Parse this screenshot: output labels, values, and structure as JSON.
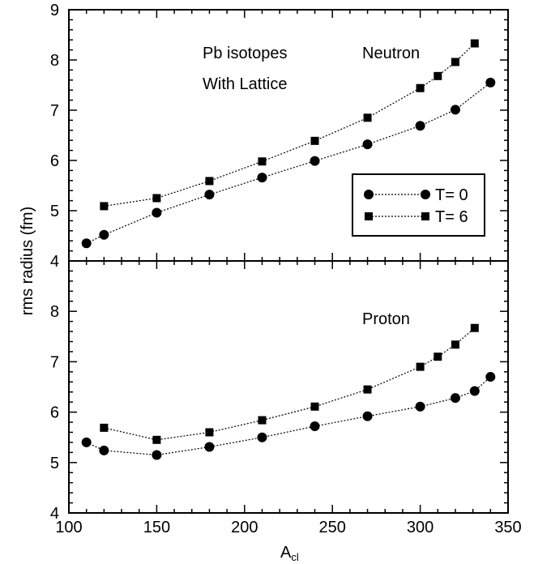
{
  "chart_data": {
    "type": "line",
    "ylabel": "rms radius (fm)",
    "xlabel_main": "A",
    "xlabel_sub": "cl",
    "xlim": [
      100,
      350
    ],
    "xticks": [
      "100",
      "150",
      "200",
      "250",
      "300",
      "350"
    ],
    "title_lines": [
      "Pb isotopes",
      "With Lattice"
    ],
    "legend": {
      "placement": "right, upper panel",
      "entries": [
        {
          "label": "T= 0",
          "marker": "circle"
        },
        {
          "label": "T= 6",
          "marker": "square"
        }
      ]
    },
    "panels": [
      {
        "name": "Neutron",
        "ylim": [
          4,
          9
        ],
        "yticks": [
          "4",
          "5",
          "6",
          "7",
          "8",
          "9"
        ],
        "series": [
          {
            "name": "T= 0",
            "marker": "circle",
            "x": [
              110,
              120,
              150,
              180,
              210,
              240,
              270,
              300,
              320,
              340
            ],
            "y": [
              4.35,
              4.52,
              4.96,
              5.32,
              5.66,
              5.99,
              6.32,
              6.69,
              7.01,
              7.55
            ]
          },
          {
            "name": "T= 6",
            "marker": "square",
            "x": [
              120,
              150,
              180,
              210,
              240,
              270,
              300,
              310,
              320,
              331
            ],
            "y": [
              5.09,
              5.25,
              5.59,
              5.98,
              6.39,
              6.85,
              7.44,
              7.68,
              7.96,
              8.33
            ]
          }
        ]
      },
      {
        "name": "Proton",
        "ylim": [
          4,
          9
        ],
        "yticks": [
          "4",
          "5",
          "6",
          "7",
          "8",
          ""
        ],
        "series": [
          {
            "name": "T= 0",
            "marker": "circle",
            "x": [
              110,
              120,
              150,
              180,
              210,
              240,
              270,
              300,
              320,
              331,
              340
            ],
            "y": [
              5.4,
              5.24,
              5.15,
              5.31,
              5.5,
              5.72,
              5.92,
              6.11,
              6.28,
              6.42,
              6.7
            ]
          },
          {
            "name": "T= 6",
            "marker": "square",
            "x": [
              120,
              150,
              180,
              210,
              240,
              270,
              300,
              310,
              320,
              331
            ],
            "y": [
              5.69,
              5.45,
              5.6,
              5.84,
              6.11,
              6.45,
              6.9,
              7.1,
              7.34,
              7.67
            ]
          }
        ]
      }
    ]
  }
}
